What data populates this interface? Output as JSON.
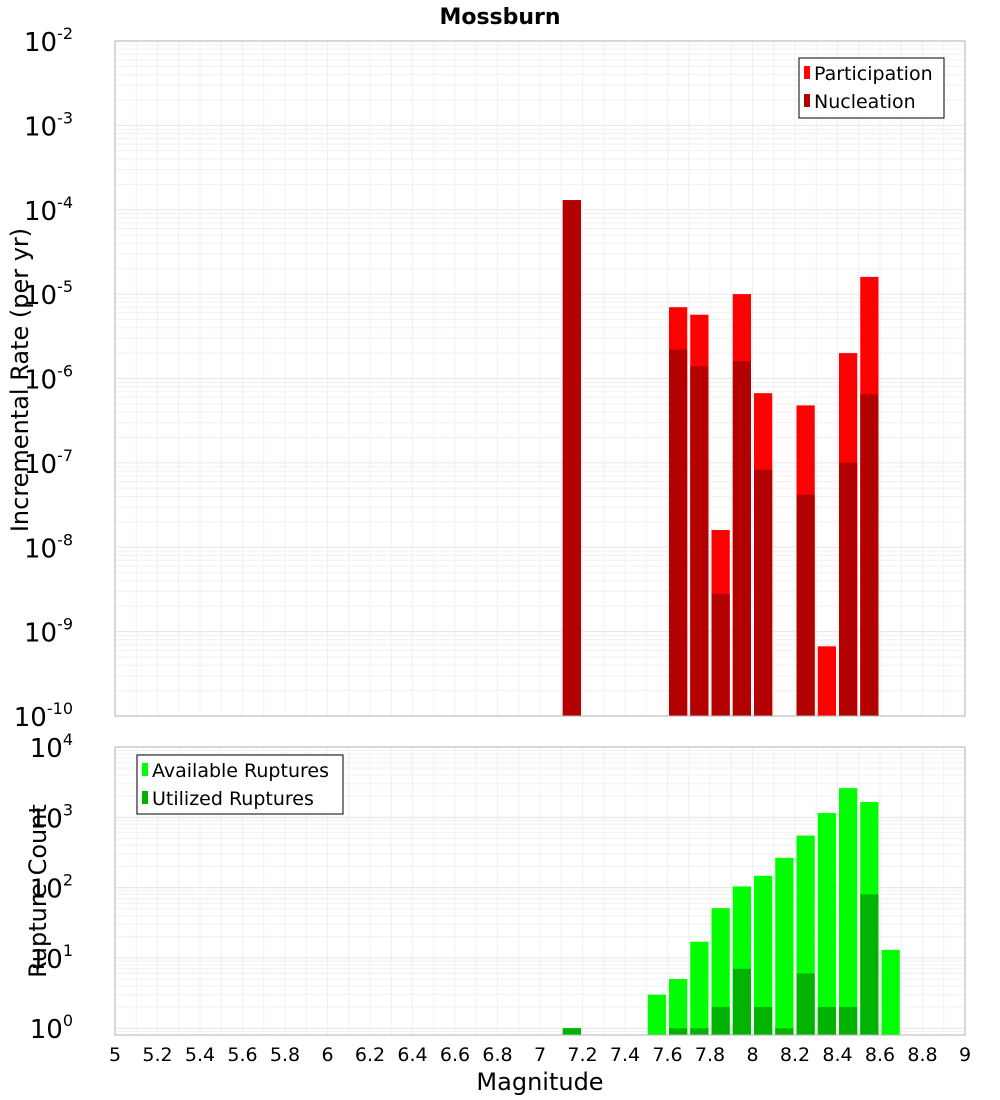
{
  "chart_data": [
    {
      "type": "bar",
      "title": "Mossburn",
      "ylabel": "Incremental Rate (per yr)",
      "yscale": "log",
      "ylim": [
        1e-10,
        0.01
      ],
      "y_tick_exponents": [
        -10,
        -9,
        -8,
        -7,
        -6,
        -5,
        -4,
        -3,
        -2
      ],
      "x": [
        7.1,
        7.6,
        7.7,
        7.8,
        7.9,
        8.0,
        8.2,
        8.3,
        8.4,
        8.5
      ],
      "series": [
        {
          "name": "Participation",
          "color": "#ff0000",
          "values": [
            0.00013,
            7e-06,
            5.7e-06,
            1.6e-08,
            1e-05,
            6.7e-07,
            4.8e-07,
            6.7e-10,
            2e-06,
            1.6e-05
          ]
        },
        {
          "name": "Nucleation",
          "color": "#b30000",
          "values": [
            0.00013,
            2.2e-06,
            1.4e-06,
            2.8e-09,
            1.6e-06,
            8.3e-08,
            4.2e-08,
            null,
            1e-07,
            6.5e-07
          ]
        }
      ],
      "legend_position": "top-right",
      "grid": true
    },
    {
      "type": "bar",
      "xlabel": "Magnitude",
      "ylabel": "Rupture Count",
      "yscale": "log",
      "ylim": [
        0.8,
        10000.0
      ],
      "y_tick_exponents": [
        0,
        1,
        2,
        3,
        4
      ],
      "x": [
        7.1,
        7.5,
        7.6,
        7.7,
        7.8,
        7.9,
        8.0,
        8.1,
        8.2,
        8.3,
        8.4,
        8.5,
        8.6
      ],
      "series": [
        {
          "name": "Available Ruptures",
          "color": "#00ff00",
          "values": [
            1,
            3,
            5,
            17,
            51,
            104,
            147,
            265,
            550,
            1150,
            2600,
            1650,
            13
          ]
        },
        {
          "name": "Utilized Ruptures",
          "color": "#00b300",
          "values": [
            1,
            null,
            1,
            1,
            2,
            7,
            2,
            1,
            6,
            2,
            2,
            80,
            null
          ]
        }
      ],
      "legend_position": "top-left",
      "grid": true
    }
  ],
  "x_axis": {
    "min": 5,
    "max": 9,
    "bar_width": 0.1,
    "ticks": [
      "5",
      "5.2",
      "5.4",
      "5.6",
      "5.8",
      "6",
      "6.2",
      "6.4",
      "6.6",
      "6.8",
      "7",
      "7.2",
      "7.4",
      "7.6",
      "7.8",
      "8",
      "8.2",
      "8.4",
      "8.6",
      "8.8",
      "9"
    ]
  }
}
